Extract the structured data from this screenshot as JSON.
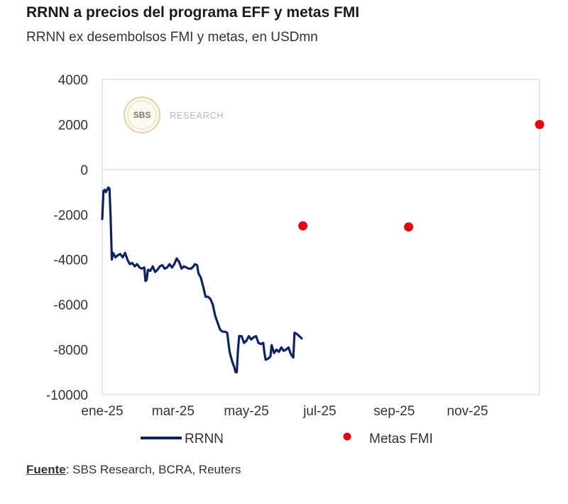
{
  "header": {
    "title": "RRNN a precios del programa EFF y metas FMI",
    "subtitle": "RRNN ex desembolsos FMI y metas, en USDmn"
  },
  "watermark": {
    "badge": "SBS",
    "text": "RESEARCH"
  },
  "footer": {
    "source_label": "Fuente",
    "source_text": ": SBS Research, BCRA, Reuters"
  },
  "colors": {
    "line": "#0d2461",
    "target": "#e30613",
    "grid": "#d9d9d9",
    "axis_text": "#333333"
  },
  "chart_data": {
    "type": "line",
    "title": "RRNN a precios del programa EFF y metas FMI",
    "subtitle": "RRNN ex desembolsos FMI y metas, en USDmn",
    "ylim": [
      -10000,
      4000
    ],
    "yticks": [
      4000,
      2000,
      0,
      -2000,
      -4000,
      -6000,
      -8000,
      -10000
    ],
    "xlim": [
      "2025-01-01",
      "2025-12-31"
    ],
    "xticks": [
      {
        "date": "2025-01-01",
        "label": "ene-25"
      },
      {
        "date": "2025-03-01",
        "label": "mar-25"
      },
      {
        "date": "2025-05-01",
        "label": "may-25"
      },
      {
        "date": "2025-07-01",
        "label": "jul-25"
      },
      {
        "date": "2025-09-01",
        "label": "sep-25"
      },
      {
        "date": "2025-11-01",
        "label": "nov-25"
      }
    ],
    "legend": {
      "position": "bottom",
      "items": [
        "RRNN",
        "Metas FMI"
      ]
    },
    "series": [
      {
        "name": "RRNN",
        "kind": "line",
        "color": "#0d2461",
        "points": [
          [
            "2025-01-01",
            -2200
          ],
          [
            "2025-01-02",
            -950
          ],
          [
            "2025-01-03",
            -900
          ],
          [
            "2025-01-04",
            -1000
          ],
          [
            "2025-01-05",
            -900
          ],
          [
            "2025-01-06",
            -800
          ],
          [
            "2025-01-07",
            -850
          ],
          [
            "2025-01-08",
            -2100
          ],
          [
            "2025-01-09",
            -4000
          ],
          [
            "2025-01-10",
            -3700
          ],
          [
            "2025-01-12",
            -3900
          ],
          [
            "2025-01-14",
            -3800
          ],
          [
            "2025-01-16",
            -3750
          ],
          [
            "2025-01-18",
            -3900
          ],
          [
            "2025-01-20",
            -3700
          ],
          [
            "2025-01-22",
            -4000
          ],
          [
            "2025-01-24",
            -4200
          ],
          [
            "2025-01-26",
            -4150
          ],
          [
            "2025-01-28",
            -4300
          ],
          [
            "2025-01-30",
            -4200
          ],
          [
            "2025-02-01",
            -4350
          ],
          [
            "2025-02-03",
            -4400
          ],
          [
            "2025-02-05",
            -4350
          ],
          [
            "2025-02-06",
            -4950
          ],
          [
            "2025-02-07",
            -4900
          ],
          [
            "2025-02-08",
            -4450
          ],
          [
            "2025-02-10",
            -4500
          ],
          [
            "2025-02-12",
            -4300
          ],
          [
            "2025-02-14",
            -4550
          ],
          [
            "2025-02-16",
            -4450
          ],
          [
            "2025-02-18",
            -4300
          ],
          [
            "2025-02-20",
            -4250
          ],
          [
            "2025-02-22",
            -4400
          ],
          [
            "2025-02-24",
            -4350
          ],
          [
            "2025-02-26",
            -4200
          ],
          [
            "2025-02-28",
            -4350
          ],
          [
            "2025-03-02",
            -4200
          ],
          [
            "2025-03-04",
            -3950
          ],
          [
            "2025-03-06",
            -4100
          ],
          [
            "2025-03-08",
            -4400
          ],
          [
            "2025-03-10",
            -4300
          ],
          [
            "2025-03-12",
            -4350
          ],
          [
            "2025-03-14",
            -4400
          ],
          [
            "2025-03-16",
            -4400
          ],
          [
            "2025-03-18",
            -4300
          ],
          [
            "2025-03-19",
            -4200
          ],
          [
            "2025-03-21",
            -4250
          ],
          [
            "2025-03-22",
            -4600
          ],
          [
            "2025-03-24",
            -4800
          ],
          [
            "2025-03-26",
            -5200
          ],
          [
            "2025-03-28",
            -5650
          ],
          [
            "2025-03-30",
            -5650
          ],
          [
            "2025-04-01",
            -5750
          ],
          [
            "2025-04-03",
            -6000
          ],
          [
            "2025-04-05",
            -6500
          ],
          [
            "2025-04-07",
            -6800
          ],
          [
            "2025-04-09",
            -7100
          ],
          [
            "2025-04-11",
            -7200
          ],
          [
            "2025-04-13",
            -7200
          ],
          [
            "2025-04-15",
            -7250
          ],
          [
            "2025-04-17",
            -8100
          ],
          [
            "2025-04-19",
            -8500
          ],
          [
            "2025-04-21",
            -8800
          ],
          [
            "2025-04-22",
            -9000
          ],
          [
            "2025-04-23",
            -9000
          ],
          [
            "2025-04-24",
            -8000
          ],
          [
            "2025-04-25",
            -7400
          ],
          [
            "2025-04-27",
            -7400
          ],
          [
            "2025-04-29",
            -7700
          ],
          [
            "2025-05-01",
            -7600
          ],
          [
            "2025-05-03",
            -7400
          ],
          [
            "2025-05-05",
            -7550
          ],
          [
            "2025-05-07",
            -7450
          ],
          [
            "2025-05-09",
            -7400
          ],
          [
            "2025-05-11",
            -7700
          ],
          [
            "2025-05-13",
            -7750
          ],
          [
            "2025-05-15",
            -7700
          ],
          [
            "2025-05-16",
            -8150
          ],
          [
            "2025-05-17",
            -8450
          ],
          [
            "2025-05-19",
            -8400
          ],
          [
            "2025-05-21",
            -8300
          ],
          [
            "2025-05-22",
            -7800
          ],
          [
            "2025-05-24",
            -8150
          ],
          [
            "2025-05-26",
            -8000
          ],
          [
            "2025-05-28",
            -8100
          ],
          [
            "2025-05-30",
            -7900
          ],
          [
            "2025-06-01",
            -8050
          ],
          [
            "2025-06-03",
            -8000
          ],
          [
            "2025-06-05",
            -7900
          ],
          [
            "2025-06-07",
            -8200
          ],
          [
            "2025-06-09",
            -8350
          ],
          [
            "2025-06-10",
            -7250
          ],
          [
            "2025-06-12",
            -7300
          ],
          [
            "2025-06-14",
            -7400
          ],
          [
            "2025-06-16",
            -7500
          ]
        ]
      },
      {
        "name": "Metas FMI",
        "kind": "scatter",
        "color": "#e30613",
        "points": [
          [
            "2025-06-17",
            -2500
          ],
          [
            "2025-09-13",
            -2550
          ],
          [
            "2025-12-31",
            2000
          ]
        ]
      }
    ]
  }
}
